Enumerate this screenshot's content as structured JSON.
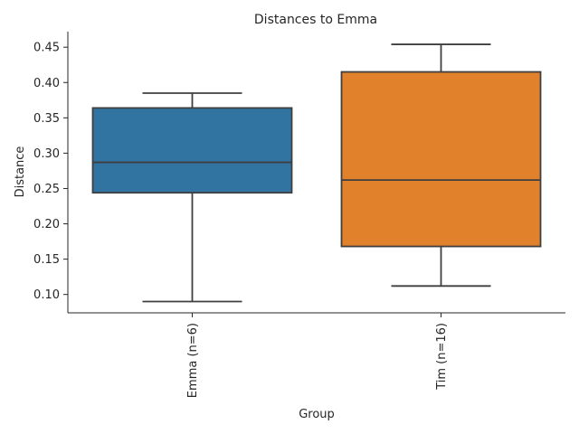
{
  "chart_data": {
    "type": "box",
    "title": "Distances to Emma",
    "xlabel": "Group",
    "ylabel": "Distance",
    "categories": [
      "Emma (n=6)",
      "Tim (n=16)"
    ],
    "boxes": [
      {
        "category": "Emma (n=6)",
        "whisker_low": 0.09,
        "q1": 0.244,
        "median": 0.287,
        "q3": 0.364,
        "whisker_high": 0.385,
        "color": "#3274a1"
      },
      {
        "category": "Tim (n=16)",
        "whisker_low": 0.112,
        "q1": 0.168,
        "median": 0.262,
        "q3": 0.415,
        "whisker_high": 0.454,
        "color": "#e1812c"
      }
    ],
    "yticks": [
      "0.10",
      "0.15",
      "0.20",
      "0.25",
      "0.30",
      "0.35",
      "0.40",
      "0.45"
    ],
    "ylim": [
      0.074,
      0.472
    ],
    "grid": false,
    "legend": "none"
  }
}
